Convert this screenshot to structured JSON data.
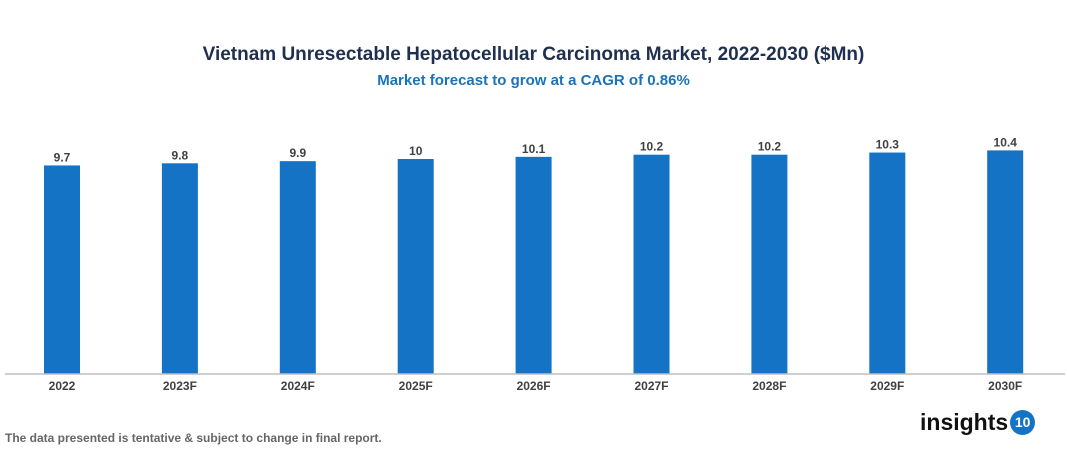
{
  "chart_data": {
    "type": "bar",
    "title": "Vietnam Unresectable Hepatocellular Carcinoma Market, 2022-2030 ($Mn)",
    "subtitle": "Market forecast to grow at a CAGR of 0.86%",
    "categories": [
      "2022",
      "2023F",
      "2024F",
      "2025F",
      "2026F",
      "2027F",
      "2028F",
      "2029F",
      "2030F"
    ],
    "values": [
      9.7,
      9.8,
      9.9,
      10,
      10.1,
      10.2,
      10.2,
      10.3,
      10.4
    ],
    "xlabel": "",
    "ylabel": "",
    "ylim": [
      0,
      10.4
    ],
    "grid": false,
    "bar_color": "#1473c4"
  },
  "footnote": "The data presented is tentative & subject to change in final report.",
  "logo": {
    "text": "insights",
    "badge": "10"
  }
}
